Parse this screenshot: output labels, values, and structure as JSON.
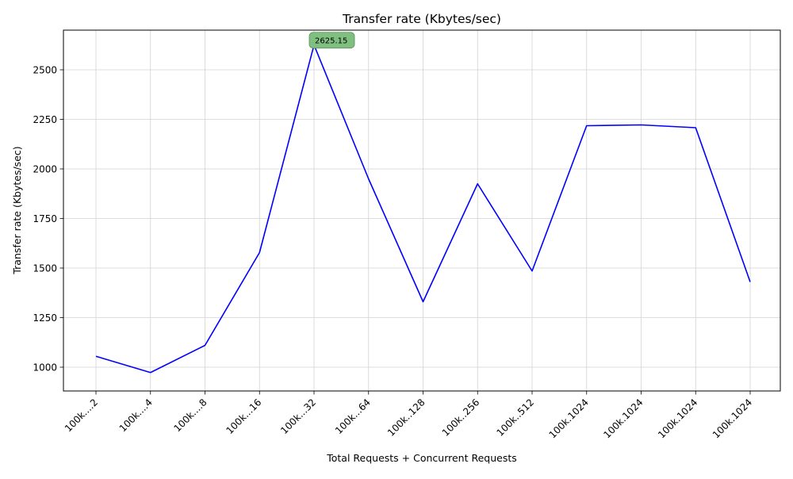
{
  "chart_data": {
    "type": "line",
    "title": "Transfer rate (Kbytes/sec)",
    "xlabel": "Total Requests + Concurrent Requests",
    "ylabel": "Transfer rate (Kbytes/sec)",
    "categories": [
      "100k....2",
      "100k....4",
      "100k....8",
      "100k...16",
      "100k...32",
      "100k...64",
      "100k..128",
      "100k..256",
      "100k..512",
      "100k.1024",
      "100k.1024",
      "100k.1024",
      "100k.1024"
    ],
    "series": [
      {
        "values": [
          1055,
          973,
          1110,
          1578,
          2625.15,
          1950,
          1330,
          1925,
          1485,
          2218,
          2222,
          2208,
          1430
        ],
        "color": "#0000ff"
      }
    ],
    "yticks": [
      1000,
      1250,
      1500,
      1750,
      2000,
      2250,
      2500
    ],
    "ylim": [
      880,
      2700
    ],
    "grid": true,
    "annotation": {
      "text": "2625.15",
      "index": 4,
      "color": "#008000",
      "box_color": "#7fbf7f"
    }
  }
}
